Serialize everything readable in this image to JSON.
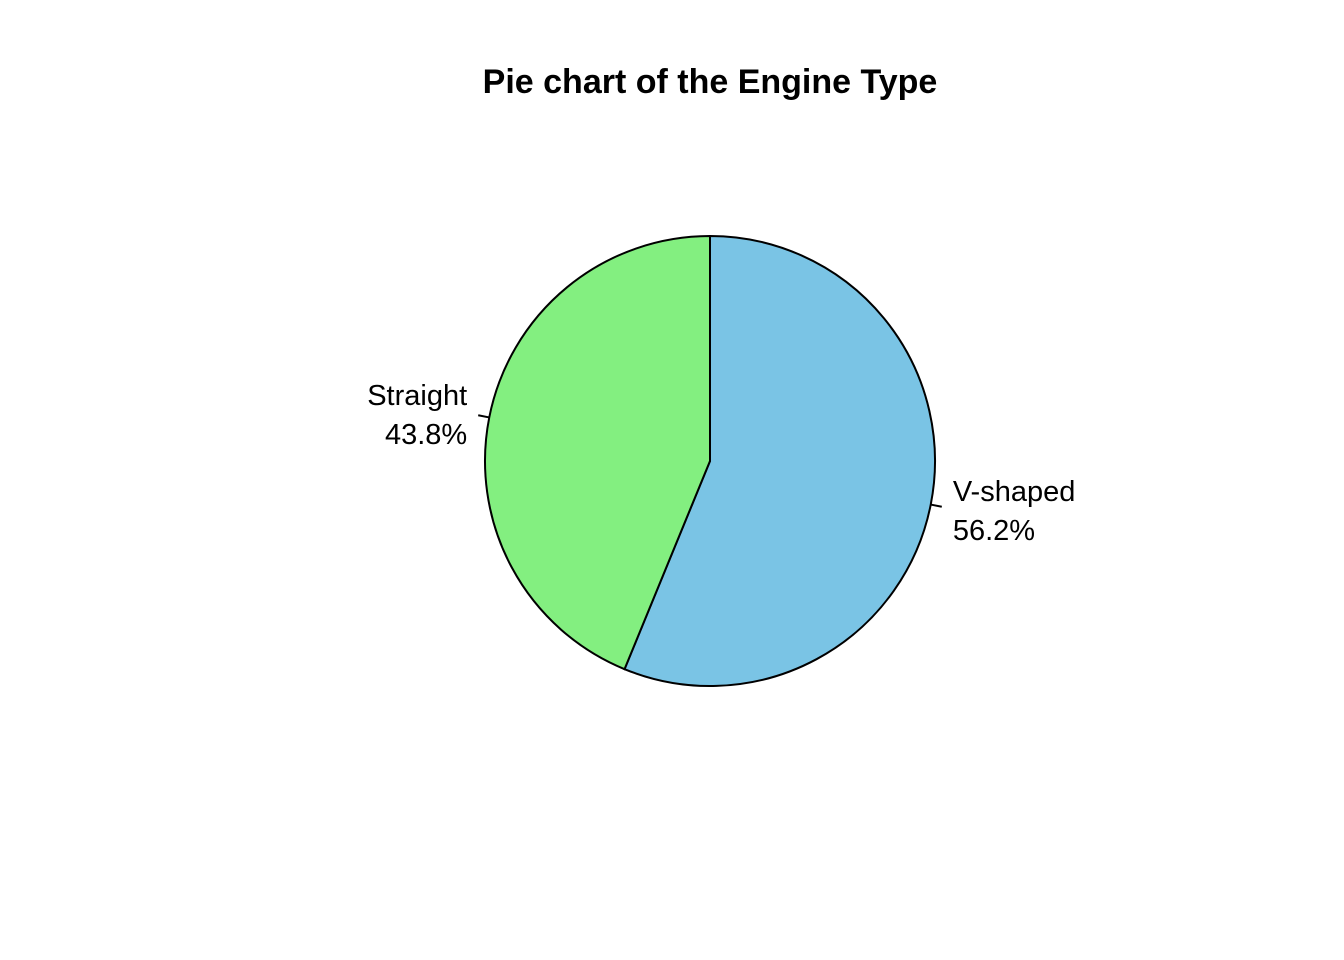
{
  "chart_data": {
    "type": "pie",
    "title": "Pie chart of the Engine Type",
    "slices": [
      {
        "label": "V-shaped",
        "percent_label": "56.2%",
        "value": 56.2,
        "color": "#7AC4E5"
      },
      {
        "label": "Straight",
        "percent_label": "43.8%",
        "value": 43.8,
        "color": "#83EF80"
      }
    ],
    "start": "12 o'clock",
    "direction": "clockwise"
  }
}
